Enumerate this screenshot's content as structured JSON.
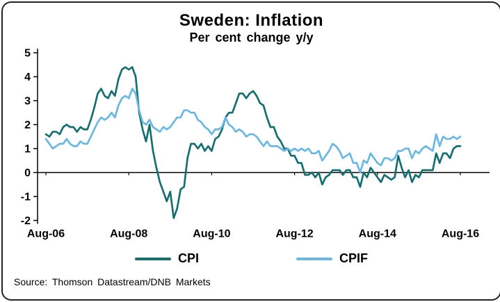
{
  "chart_data": {
    "type": "line",
    "title": "Sweden: Inflation",
    "subtitle": "Per cent change y/y",
    "source": "Source:  Thomson  Datastream/DNB  Markets",
    "ylim": [
      -2,
      5
    ],
    "y_ticks": [
      5,
      4,
      3,
      2,
      1,
      0,
      -1,
      -2
    ],
    "x_tick_labels": [
      "Aug-06",
      "Aug-08",
      "Aug-10",
      "Aug-12",
      "Aug-14",
      "Aug-16"
    ],
    "x_tick_indices": [
      0,
      24,
      48,
      72,
      96,
      120
    ],
    "x_range_months": 120,
    "grid": false,
    "legend_position": "bottom",
    "series": [
      {
        "name": "CPI",
        "color": "#156f6e",
        "values": [
          1.6,
          1.5,
          1.7,
          1.7,
          1.6,
          1.9,
          2.0,
          1.9,
          1.9,
          1.7,
          1.9,
          1.8,
          1.8,
          2.2,
          2.7,
          3.3,
          3.5,
          3.2,
          3.1,
          3.4,
          3.2,
          3.9,
          4.3,
          4.4,
          4.3,
          4.4,
          4.0,
          2.5,
          1.8,
          1.3,
          2.0,
          0.9,
          0.2,
          -0.4,
          -0.8,
          -1.2,
          -0.8,
          -1.9,
          -1.5,
          -0.7,
          -0.6,
          0.6,
          1.2,
          1.2,
          1.0,
          1.2,
          0.9,
          1.1,
          0.9,
          1.4,
          1.5,
          1.8,
          2.3,
          2.5,
          2.5,
          2.9,
          3.3,
          3.3,
          3.1,
          3.3,
          3.4,
          3.2,
          2.9,
          2.8,
          2.3,
          1.9,
          1.9,
          1.5,
          1.3,
          1.0,
          1.0,
          0.7,
          0.7,
          0.4,
          0.4,
          -0.1,
          -0.1,
          0.0,
          -0.2,
          0.0,
          -0.5,
          -0.2,
          -0.1,
          0.1,
          0.1,
          0.1,
          -0.1,
          0.1,
          0.1,
          -0.2,
          -0.2,
          -0.6,
          0.0,
          -0.2,
          0.2,
          0.0,
          -0.2,
          -0.4,
          -0.1,
          -0.2,
          -0.3,
          -0.2,
          0.7,
          0.2,
          -0.2,
          0.1,
          -0.4,
          -0.1,
          -0.2,
          0.1,
          0.1,
          0.1,
          0.1,
          0.8,
          0.4,
          0.8,
          0.8,
          0.6,
          1.0,
          1.1,
          1.1
        ]
      },
      {
        "name": "CPIF",
        "color": "#6ab7e2",
        "values": [
          1.4,
          1.2,
          1.0,
          1.1,
          1.2,
          1.2,
          1.4,
          1.2,
          1.1,
          1.1,
          1.3,
          1.2,
          1.2,
          1.5,
          1.8,
          2.1,
          2.3,
          2.2,
          2.3,
          2.5,
          2.3,
          2.8,
          3.1,
          3.2,
          3.1,
          3.5,
          3.3,
          2.6,
          2.1,
          2.0,
          2.2,
          1.9,
          1.8,
          1.7,
          1.9,
          1.8,
          1.9,
          2.1,
          2.3,
          2.3,
          2.6,
          2.6,
          2.5,
          2.5,
          2.2,
          2.1,
          1.9,
          1.8,
          1.6,
          1.8,
          1.8,
          1.9,
          2.3,
          2.0,
          1.9,
          1.7,
          1.8,
          1.7,
          1.5,
          1.6,
          1.6,
          1.5,
          1.3,
          1.1,
          1.3,
          1.1,
          1.1,
          1.1,
          1.0,
          0.9,
          1.0,
          0.9,
          1.0,
          0.9,
          1.0,
          0.9,
          1.0,
          0.8,
          0.8,
          0.9,
          0.5,
          0.7,
          0.9,
          1.2,
          1.1,
          0.9,
          0.6,
          0.7,
          0.8,
          0.4,
          0.4,
          0.0,
          0.5,
          0.4,
          0.8,
          0.6,
          0.4,
          0.3,
          0.6,
          0.6,
          0.5,
          0.6,
          0.9,
          0.9,
          1.0,
          1.0,
          0.6,
          0.9,
          0.8,
          1.0,
          1.1,
          1.0,
          0.9,
          1.6,
          1.1,
          1.5,
          1.4,
          1.4,
          1.5,
          1.4,
          1.5
        ]
      }
    ]
  }
}
